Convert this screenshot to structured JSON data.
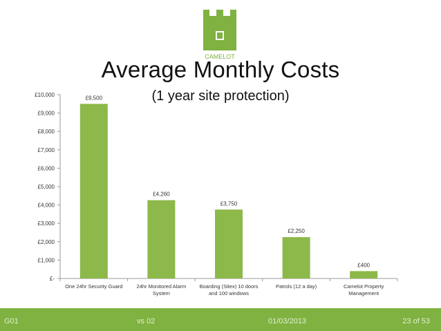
{
  "slide": {
    "title": "Average Monthly Costs",
    "subtitle": "(1 year site protection)",
    "logo_text": "CAMELOT",
    "logo_color": "#7fb240"
  },
  "footer": {
    "left": "G01",
    "version": "vs 02",
    "date": "01/03/2013",
    "page": "23 of 53",
    "color": "#7fb240"
  },
  "chart_data": {
    "type": "bar",
    "categories": [
      "One 24hr Security Guard",
      "24hr Monitored Alarm System",
      "Boarding (Sitex) 10 doors and 100 windows",
      "Patrols (12 a day)",
      "Camelot Property Management"
    ],
    "category_lines": [
      [
        "One 24hr Security Guard"
      ],
      [
        "24hr Monitored Alarm",
        "System"
      ],
      [
        "Boarding (Sitex) 10 doors",
        "and 100 windows"
      ],
      [
        "Patrols (12 a day)"
      ],
      [
        "Camelot Property",
        "Management"
      ]
    ],
    "values": [
      9500,
      4260,
      3750,
      2250,
      400
    ],
    "data_labels": [
      "£9,500",
      "£4,260",
      "£3,750",
      "£2,250",
      "£400"
    ],
    "yticks": [
      0,
      1000,
      2000,
      3000,
      4000,
      5000,
      6000,
      7000,
      8000,
      9000,
      10000
    ],
    "ytick_labels": [
      "£-",
      "£1,000",
      "£2,000",
      "£3,000",
      "£4,000",
      "£5,000",
      "£6,000",
      "£7,000",
      "£8,000",
      "£9,000",
      "£10,000"
    ],
    "ylim": [
      0,
      10000
    ],
    "bar_color": "#8db84a",
    "grid": false,
    "legend": "none"
  }
}
